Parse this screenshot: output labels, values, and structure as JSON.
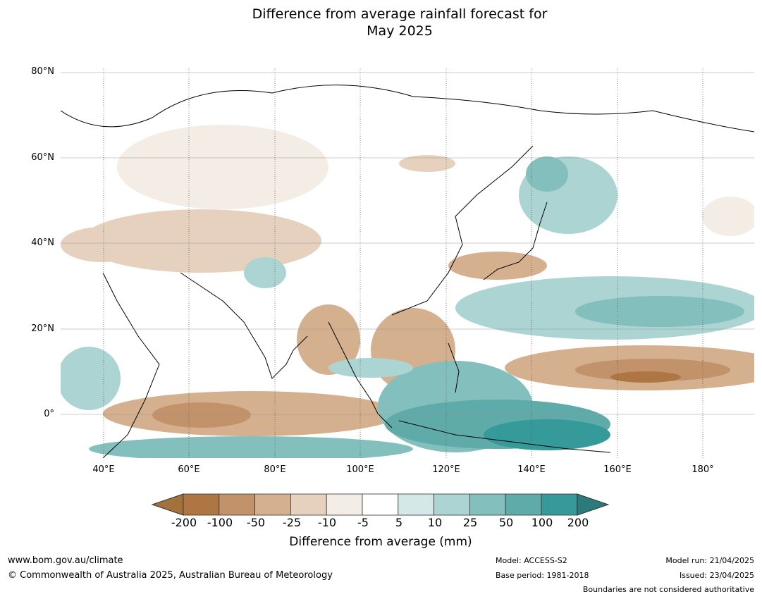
{
  "title": {
    "line1": "Difference from average rainfall forecast for",
    "line2": "May 2025"
  },
  "map": {
    "lat_labels": [
      "80°N",
      "60°N",
      "40°N",
      "20°N",
      "0°"
    ],
    "lon_labels": [
      "40°E",
      "60°E",
      "80°E",
      "100°E",
      "120°E",
      "140°E",
      "160°E",
      "180°"
    ],
    "extent": {
      "lon": [
        30,
        192
      ],
      "lat": [
        -10,
        81
      ]
    }
  },
  "colorbar": {
    "label": "Difference from average (mm)",
    "ticks": [
      "-200",
      "-100",
      "-50",
      "-25",
      "-10",
      "-5",
      "5",
      "10",
      "25",
      "50",
      "100",
      "200"
    ],
    "colors": [
      "#a3723a",
      "#ad7643",
      "#c2936a",
      "#d4b08f",
      "#e5d1bd",
      "#f3ede6",
      "#ffffff",
      "#d4e8e7",
      "#abd4d3",
      "#83bfbd",
      "#5fabaa",
      "#36999a",
      "#2b7b7c"
    ]
  },
  "footer": {
    "website": "www.bom.gov.au/climate",
    "copyright": "© Commonwealth of Australia 2025, Australian Bureau of Meteorology",
    "model": "Model: ACCESS-S2",
    "base_period": "Base period: 1981-2018",
    "model_run": "Model run: 21/04/2025",
    "issued": "Issued: 23/04/2025",
    "boundaries_note": "Boundaries are not considered authoritative"
  }
}
